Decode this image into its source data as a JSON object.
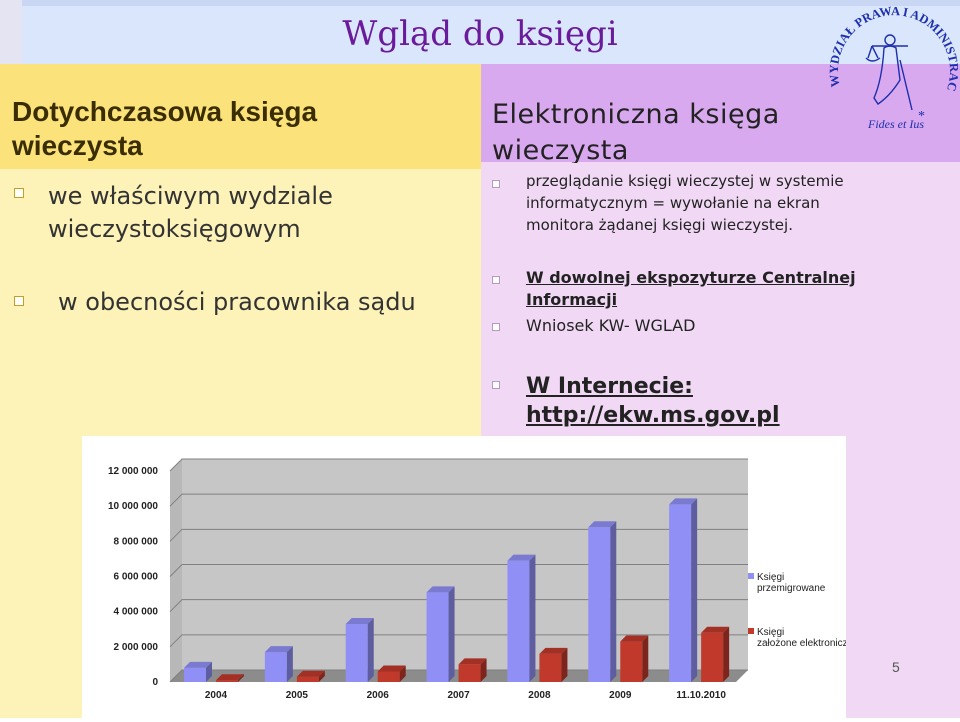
{
  "slide": {
    "title": "Wgląd do księgi",
    "page_number": "5"
  },
  "left": {
    "heading_line1": "Dotychczasowa księga",
    "heading_line2": "wieczysta",
    "bullets": [
      {
        "line1": "we właściwym wydziale",
        "line2": "wieczystoksięgowym"
      },
      {
        "line1": "w obecności pracownika sądu"
      }
    ]
  },
  "right": {
    "heading_line1": "Elektroniczna księga",
    "heading_line2": "wieczysta",
    "bullets": [
      {
        "line1": "przeglądanie księgi wieczystej w systemie",
        "line2": "informatycznym = wywołanie na ekran",
        "line3": "monitora żądanej księgi wieczystej."
      },
      {
        "line1": "W dowolnej ekspozyturze Centralnej",
        "line2": "Informacji"
      },
      {
        "line1": "Wniosek KW- WGLAD"
      },
      {
        "line1": "W Internecie:",
        "line2": "http://ekw.ms.gov.pl"
      }
    ]
  },
  "seal": {
    "text_arc": "WYDZIAŁ PRAWA I ADMINISTRACJI UKSW",
    "motto": "Fides et Ius"
  },
  "chart_data": {
    "type": "bar",
    "categories": [
      "2004",
      "2005",
      "2006",
      "2007",
      "2008",
      "2009",
      "11.10.2010"
    ],
    "series": [
      {
        "name": "Księgi przemigrowane",
        "color": "#8f8ff5",
        "values": [
          800000,
          1700000,
          3300000,
          5100000,
          6900000,
          8800000,
          10100000
        ]
      },
      {
        "name": "Księgi założone elektronicznie",
        "color": "#c0392b",
        "values": [
          100000,
          300000,
          600000,
          1000000,
          1600000,
          2300000,
          2800000
        ]
      }
    ],
    "ylim": [
      0,
      12000000
    ],
    "yticks": [
      "0",
      "2 000 000",
      "4 000 000",
      "6 000 000",
      "8 000 000",
      "10 000 000",
      "12 000 000"
    ],
    "grid": true,
    "legend": "right",
    "title": "",
    "xlabel": "",
    "ylabel": ""
  }
}
